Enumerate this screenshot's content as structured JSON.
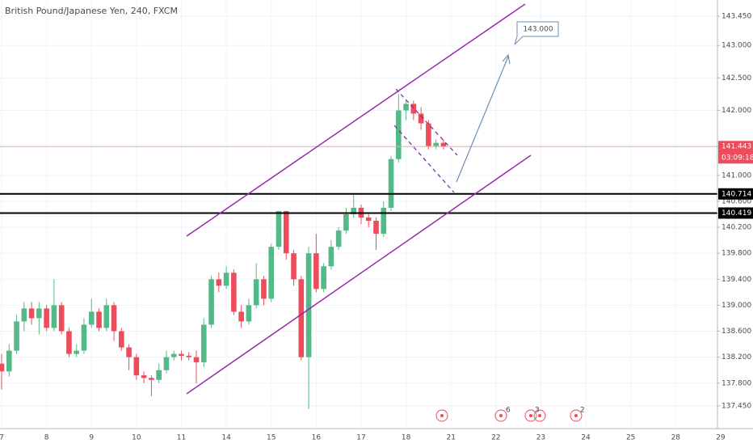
{
  "chart_data": {
    "type": "candlestick",
    "title": "British Pound/Japanese Yen, 240, FXCM",
    "categories": [
      "7",
      null,
      null,
      null,
      null,
      null,
      "8",
      null,
      null,
      null,
      null,
      null,
      "9",
      null,
      null,
      null,
      null,
      null,
      "10",
      null,
      null,
      null,
      null,
      null,
      "11",
      null,
      null,
      null,
      null,
      null,
      "14",
      null,
      null,
      null,
      null,
      null,
      "15",
      null,
      null,
      null,
      null,
      null,
      "16",
      null,
      null,
      null,
      null,
      null,
      "17",
      null,
      null,
      null,
      null,
      null,
      "18",
      null,
      null,
      null,
      null,
      null,
      "21",
      null,
      null,
      null,
      null,
      null,
      "22",
      null,
      null,
      null,
      null,
      null,
      "23",
      null,
      null,
      null,
      null,
      null,
      "24",
      null,
      null,
      null,
      null,
      null,
      "25",
      null,
      null,
      null,
      null,
      null,
      "28",
      null,
      null,
      null,
      null,
      null,
      "29"
    ],
    "open": [
      138.1,
      137.98,
      138.3,
      138.75,
      138.95,
      138.8,
      138.95,
      138.65,
      139.0,
      138.6,
      138.25,
      138.3,
      138.7,
      138.9,
      138.65,
      139.0,
      138.6,
      138.35,
      138.2,
      137.92,
      137.88,
      137.85,
      138.0,
      138.2,
      138.25,
      138.22,
      138.2,
      138.12,
      138.7,
      139.4,
      139.3,
      139.5,
      138.9,
      138.75,
      139.0,
      139.4,
      139.1,
      139.9,
      140.45,
      139.8,
      139.4,
      138.2,
      139.8,
      139.25,
      139.6,
      139.9,
      140.15,
      140.4,
      140.5,
      140.35,
      140.3,
      140.1,
      140.5,
      141.25,
      142.0,
      142.1,
      141.95,
      141.8,
      141.45,
      141.5,
      null,
      null,
      null,
      null,
      null,
      null,
      null,
      null,
      null,
      null,
      null,
      null,
      null,
      null,
      null,
      null,
      null,
      null,
      null,
      null,
      null,
      null,
      null,
      null,
      null,
      null,
      null,
      null,
      null,
      null,
      null,
      null,
      null,
      null,
      null,
      null,
      null
    ],
    "high": [
      138.25,
      138.4,
      138.85,
      139.05,
      139.05,
      139.05,
      139.0,
      139.4,
      139.05,
      138.65,
      138.4,
      138.8,
      139.1,
      138.95,
      139.1,
      139.05,
      138.65,
      138.4,
      138.25,
      137.98,
      137.92,
      138.1,
      138.3,
      138.3,
      138.3,
      138.28,
      138.3,
      138.8,
      139.45,
      139.5,
      139.6,
      139.55,
      139.0,
      139.1,
      139.65,
      139.45,
      139.95,
      140.45,
      140.45,
      139.85,
      139.45,
      139.9,
      140.1,
      139.65,
      140.0,
      140.2,
      140.5,
      140.7,
      140.55,
      140.4,
      140.35,
      140.6,
      141.3,
      142.25,
      142.15,
      142.15,
      142.05,
      141.85,
      141.55,
      141.55,
      null,
      null,
      null,
      null,
      null,
      null,
      null,
      null,
      null,
      null,
      null,
      null,
      null,
      null,
      null,
      null,
      null,
      null,
      null,
      null,
      null,
      null,
      null,
      null,
      null,
      null,
      null,
      null,
      null,
      null,
      null,
      null,
      null,
      null,
      null,
      null,
      null
    ],
    "low": [
      137.7,
      137.9,
      138.25,
      138.6,
      138.7,
      138.55,
      138.6,
      138.6,
      138.55,
      138.2,
      138.2,
      138.25,
      138.65,
      138.6,
      138.6,
      138.45,
      138.3,
      138.0,
      137.85,
      137.8,
      137.6,
      137.8,
      137.95,
      138.15,
      138.15,
      138.15,
      137.8,
      138.05,
      138.65,
      139.2,
      139.25,
      138.85,
      138.65,
      138.7,
      138.95,
      139.0,
      139.05,
      139.85,
      139.7,
      139.3,
      138.15,
      137.4,
      139.2,
      139.2,
      139.55,
      139.85,
      140.1,
      140.35,
      140.25,
      140.2,
      139.85,
      140.05,
      140.45,
      141.2,
      141.85,
      141.85,
      141.7,
      141.4,
      141.4,
      141.4,
      null,
      null,
      null,
      null,
      null,
      null,
      null,
      null,
      null,
      null,
      null,
      null,
      null,
      null,
      null,
      null,
      null,
      null,
      null,
      null,
      null,
      null,
      null,
      null,
      null,
      null,
      null,
      null,
      null,
      null,
      null,
      null,
      null,
      null,
      null,
      null,
      null
    ],
    "close": [
      137.98,
      138.3,
      138.75,
      138.95,
      138.8,
      138.95,
      138.65,
      139.0,
      138.6,
      138.25,
      138.3,
      138.7,
      138.9,
      138.65,
      139.0,
      138.6,
      138.35,
      138.2,
      137.92,
      137.88,
      137.85,
      138.0,
      138.2,
      138.25,
      138.22,
      138.2,
      138.12,
      138.7,
      139.4,
      139.3,
      139.5,
      138.9,
      138.75,
      139.0,
      139.4,
      139.1,
      139.9,
      140.45,
      139.8,
      139.4,
      138.2,
      139.8,
      139.25,
      139.6,
      139.9,
      140.15,
      140.4,
      140.5,
      140.35,
      140.3,
      140.1,
      140.5,
      141.25,
      142.0,
      142.1,
      141.95,
      141.8,
      141.45,
      141.5,
      141.44,
      null,
      null,
      null,
      null,
      null,
      null,
      null,
      null,
      null,
      null,
      null,
      null,
      null,
      null,
      null,
      null,
      null,
      null,
      null,
      null,
      null,
      null,
      null,
      null,
      null,
      null,
      null,
      null,
      null,
      null,
      null,
      null,
      null,
      null,
      null,
      null,
      null
    ],
    "up_color": "#53b987",
    "down_color": "#eb4d5c",
    "ylim": [
      137.1,
      143.7
    ],
    "yticks": [
      {
        "value": 137.45,
        "label": "137.450"
      },
      {
        "value": 137.8,
        "label": "137.800"
      },
      {
        "value": 138.2,
        "label": "138.200"
      },
      {
        "value": 138.6,
        "label": "138.600"
      },
      {
        "value": 139,
        "label": "139.000"
      },
      {
        "value": 139.4,
        "label": "139.400"
      },
      {
        "value": 139.8,
        "label": "139.800"
      },
      {
        "value": 140.2,
        "label": "140.200"
      },
      {
        "value": 140.6,
        "label": "140.600"
      },
      {
        "value": 141,
        "label": "141.000"
      },
      {
        "value": 142,
        "label": "142.000"
      },
      {
        "value": 142.5,
        "label": "142.500"
      },
      {
        "value": 143,
        "label": "143.000"
      },
      {
        "value": 143.45,
        "label": "143.450"
      }
    ],
    "grid": true,
    "levels": [
      140.714,
      140.419
    ],
    "last_price": 141.443,
    "countdown": "03:09:18",
    "target_label": "143.000",
    "event_counts": [
      "6",
      "3",
      "2"
    ]
  }
}
